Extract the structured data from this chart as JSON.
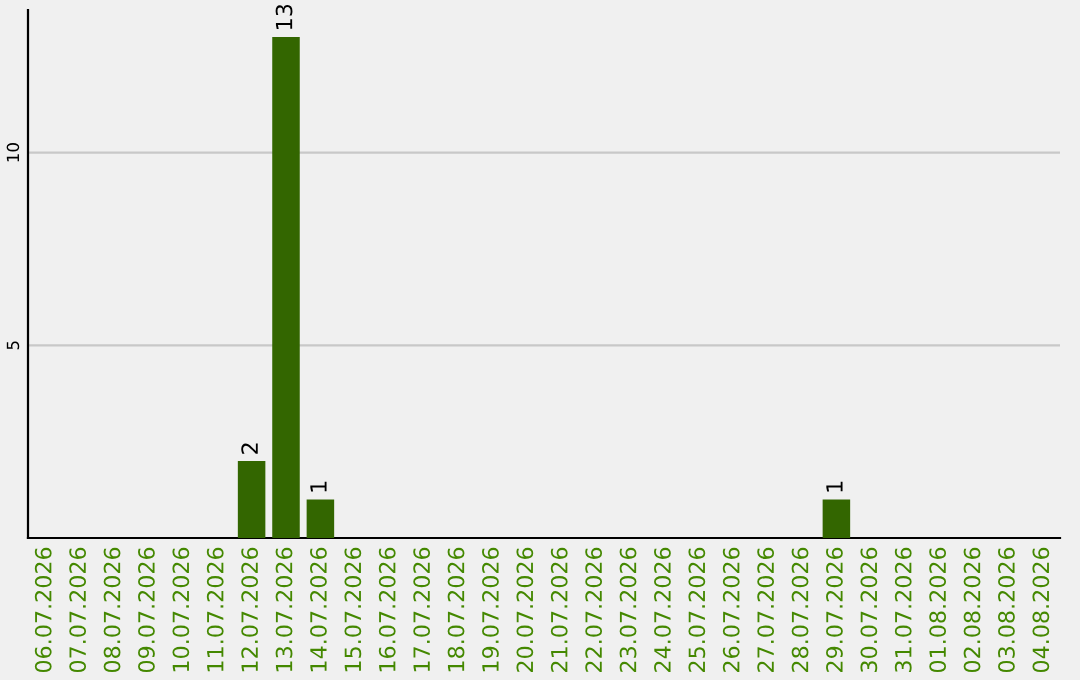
{
  "chart_data": {
    "type": "bar",
    "categories": [
      "06.07.2026",
      "07.07.2026",
      "08.07.2026",
      "09.07.2026",
      "10.07.2026",
      "11.07.2026",
      "12.07.2026",
      "13.07.2026",
      "14.07.2026",
      "15.07.2026",
      "16.07.2026",
      "17.07.2026",
      "18.07.2026",
      "19.07.2026",
      "20.07.2026",
      "21.07.2026",
      "22.07.2026",
      "23.07.2026",
      "24.07.2026",
      "25.07.2026",
      "26.07.2026",
      "27.07.2026",
      "28.07.2026",
      "29.07.2026",
      "30.07.2026",
      "31.07.2026",
      "01.08.2026",
      "02.08.2026",
      "03.08.2026",
      "04.08.2026"
    ],
    "values": [
      0,
      0,
      0,
      0,
      0,
      0,
      2,
      13,
      1,
      0,
      0,
      0,
      0,
      0,
      0,
      0,
      0,
      0,
      0,
      0,
      0,
      0,
      0,
      1,
      0,
      0,
      0,
      0,
      0,
      0
    ],
    "value_labels": [
      null,
      null,
      null,
      null,
      null,
      null,
      "2",
      "13",
      "1",
      null,
      null,
      null,
      null,
      null,
      null,
      null,
      null,
      null,
      null,
      null,
      null,
      null,
      null,
      "1",
      null,
      null,
      null,
      null,
      null,
      null
    ],
    "color": "#336600",
    "ylim": [
      0,
      13.7
    ],
    "yticks": [
      5,
      10
    ],
    "grid": "y",
    "legend": false
  }
}
